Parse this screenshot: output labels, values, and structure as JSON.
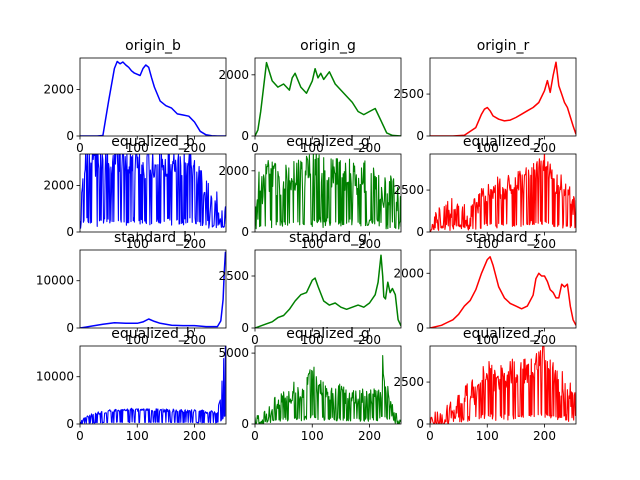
{
  "chart_data": [
    {
      "type": "line",
      "title": "origin_b",
      "color": "#0000ff",
      "xlim": [
        0,
        255
      ],
      "ylim": [
        0,
        3350
      ],
      "xticks": [
        0,
        100,
        200
      ],
      "yticks": [
        0,
        2000
      ],
      "x": [
        0,
        10,
        20,
        30,
        40,
        50,
        60,
        65,
        70,
        75,
        80,
        85,
        90,
        95,
        100,
        105,
        110,
        115,
        120,
        125,
        130,
        135,
        140,
        150,
        160,
        170,
        180,
        190,
        200,
        210,
        220,
        230,
        240,
        255
      ],
      "y": [
        0,
        0,
        0,
        0,
        20,
        1500,
        2900,
        3200,
        3100,
        3180,
        3050,
        2950,
        2800,
        2700,
        2650,
        2600,
        2900,
        3050,
        2950,
        2500,
        2100,
        1800,
        1500,
        1300,
        1200,
        950,
        900,
        850,
        600,
        200,
        50,
        10,
        0,
        0
      ]
    },
    {
      "type": "line",
      "title": "origin_g",
      "color": "#008000",
      "xlim": [
        0,
        255
      ],
      "ylim": [
        0,
        2550
      ],
      "xticks": [
        0,
        100,
        200
      ],
      "yticks": [
        0,
        2000
      ],
      "x": [
        0,
        5,
        10,
        15,
        20,
        30,
        40,
        50,
        60,
        65,
        70,
        80,
        90,
        100,
        105,
        110,
        115,
        120,
        130,
        140,
        150,
        160,
        170,
        180,
        190,
        200,
        210,
        220,
        230,
        240,
        255
      ],
      "y": [
        0,
        200,
        800,
        1600,
        2400,
        1800,
        1600,
        1700,
        1500,
        1900,
        2050,
        1600,
        1400,
        1800,
        2200,
        1900,
        2050,
        1850,
        2100,
        1700,
        1500,
        1300,
        1100,
        800,
        700,
        800,
        900,
        500,
        100,
        20,
        0
      ]
    },
    {
      "type": "line",
      "title": "origin_r",
      "color": "#ff0000",
      "xlim": [
        0,
        255
      ],
      "ylim": [
        0,
        4650
      ],
      "xticks": [
        100,
        200
      ],
      "yticks": [
        0,
        2500
      ],
      "x": [
        0,
        20,
        40,
        60,
        80,
        90,
        95,
        100,
        105,
        110,
        120,
        130,
        140,
        150,
        160,
        170,
        180,
        190,
        200,
        205,
        210,
        215,
        220,
        225,
        230,
        235,
        240,
        250,
        255
      ],
      "y": [
        0,
        0,
        0,
        50,
        500,
        1300,
        1600,
        1700,
        1500,
        1200,
        1000,
        900,
        950,
        1100,
        1300,
        1500,
        1700,
        2000,
        2700,
        3300,
        2600,
        3600,
        4400,
        3000,
        2500,
        2000,
        1700,
        600,
        100
      ]
    },
    {
      "type": "line",
      "title": "equalized_b",
      "color": "#0000ff",
      "xlim": [
        0,
        255
      ],
      "ylim": [
        0,
        3350
      ],
      "xticks": [
        100,
        200
      ],
      "yticks": [
        0,
        2000
      ],
      "x": [
        0,
        5,
        10,
        20,
        30,
        40,
        50,
        60,
        70,
        80,
        90,
        100,
        110,
        120,
        130,
        140,
        150,
        160,
        170,
        180,
        190,
        200,
        210,
        220,
        230,
        240,
        250,
        255
      ],
      "y": [
        0,
        2600,
        2900,
        3000,
        3050,
        3100,
        3050,
        3150,
        3150,
        3050,
        3000,
        3000,
        2950,
        2850,
        2950,
        2950,
        3050,
        2950,
        3000,
        2950,
        3050,
        2800,
        2100,
        1600,
        1300,
        1000,
        850,
        800
      ]
    },
    {
      "type": "line",
      "title": "equalized_g",
      "color": "#008000",
      "xlim": [
        0,
        255
      ],
      "ylim": [
        0,
        2550
      ],
      "xticks": [
        100,
        200
      ],
      "yticks": [
        0,
        2000
      ],
      "x": [
        0,
        5,
        10,
        20,
        30,
        40,
        50,
        60,
        70,
        80,
        90,
        100,
        110,
        120,
        130,
        140,
        150,
        160,
        170,
        180,
        190,
        200,
        210,
        220,
        230,
        240,
        250,
        255
      ],
      "y": [
        0,
        1600,
        1300,
        1800,
        1900,
        1700,
        1600,
        1700,
        1900,
        1800,
        2000,
        2050,
        2100,
        1900,
        2050,
        1950,
        1800,
        1950,
        1900,
        1700,
        1800,
        2000,
        1600,
        1500,
        1200,
        1400,
        1000,
        900
      ]
    },
    {
      "type": "line",
      "title": "equalized_r",
      "color": "#ff0000",
      "xlim": [
        0,
        255
      ],
      "ylim": [
        0,
        4650
      ],
      "xticks": [
        100,
        200
      ],
      "yticks": [
        0,
        2500
      ],
      "x": [
        0,
        10,
        20,
        30,
        40,
        50,
        60,
        70,
        80,
        90,
        100,
        110,
        120,
        130,
        140,
        150,
        160,
        170,
        180,
        190,
        200,
        210,
        220,
        230,
        240,
        250,
        255
      ],
      "y": [
        0,
        1000,
        900,
        1100,
        1500,
        1300,
        1300,
        1500,
        1400,
        1900,
        2300,
        2100,
        2700,
        2500,
        2800,
        3000,
        2900,
        3300,
        3400,
        3900,
        4300,
        3500,
        2900,
        2700,
        2500,
        1600,
        1200
      ]
    },
    {
      "type": "line",
      "title": "standard_b",
      "color": "#0000ff",
      "xlim": [
        0,
        255
      ],
      "ylim": [
        0,
        16500
      ],
      "xticks": [
        100,
        200
      ],
      "yticks": [
        0,
        10000
      ],
      "x": [
        0,
        10,
        20,
        40,
        60,
        80,
        100,
        110,
        120,
        130,
        140,
        160,
        180,
        200,
        220,
        240,
        246,
        250,
        252,
        254,
        255
      ],
      "y": [
        0,
        200,
        400,
        800,
        1100,
        1000,
        1000,
        1300,
        1900,
        1400,
        1000,
        600,
        500,
        500,
        300,
        300,
        1500,
        6000,
        12000,
        16000,
        15000
      ]
    },
    {
      "type": "line",
      "title": "standard_g",
      "color": "#008000",
      "xlim": [
        0,
        255
      ],
      "ylim": [
        0,
        3750
      ],
      "xticks": [
        0,
        100,
        200
      ],
      "yticks": [
        0,
        2500
      ],
      "x": [
        0,
        20,
        30,
        40,
        50,
        60,
        70,
        80,
        90,
        100,
        105,
        110,
        120,
        130,
        140,
        150,
        160,
        170,
        180,
        190,
        200,
        210,
        215,
        220,
        223,
        225,
        228,
        232,
        236,
        240,
        245,
        250,
        255
      ],
      "y": [
        0,
        200,
        300,
        500,
        600,
        900,
        1300,
        1600,
        1700,
        2300,
        2400,
        2000,
        1300,
        1100,
        1200,
        1000,
        900,
        1000,
        1100,
        1000,
        1200,
        1600,
        2200,
        3500,
        2500,
        1500,
        1400,
        2200,
        1700,
        1900,
        1600,
        400,
        100
      ]
    },
    {
      "type": "line",
      "title": "standard_r",
      "color": "#ff0000",
      "xlim": [
        0,
        255
      ],
      "ylim": [
        0,
        2850
      ],
      "xticks": [
        100,
        200
      ],
      "yticks": [
        0,
        2000
      ],
      "x": [
        0,
        20,
        30,
        40,
        50,
        60,
        70,
        80,
        90,
        100,
        105,
        110,
        120,
        130,
        140,
        150,
        160,
        170,
        180,
        185,
        190,
        195,
        200,
        205,
        210,
        215,
        220,
        225,
        230,
        235,
        240,
        245,
        250,
        255
      ],
      "y": [
        0,
        100,
        200,
        300,
        500,
        800,
        1000,
        1400,
        2000,
        2500,
        2600,
        2300,
        1500,
        1100,
        900,
        800,
        700,
        800,
        1200,
        1800,
        2000,
        1900,
        1900,
        1700,
        1400,
        1300,
        1100,
        1100,
        1600,
        1500,
        1600,
        800,
        300,
        100
      ]
    },
    {
      "type": "line",
      "title": "equalized_b",
      "color": "#0000ff",
      "xlim": [
        0,
        255
      ],
      "ylim": [
        0,
        16500
      ],
      "xticks": [
        0,
        100,
        200
      ],
      "yticks": [
        0,
        10000
      ],
      "x": [
        0,
        5,
        10,
        20,
        40,
        60,
        80,
        100,
        120,
        140,
        160,
        180,
        200,
        220,
        240,
        246,
        250,
        252,
        254,
        255
      ],
      "y": [
        0,
        800,
        1200,
        1800,
        2500,
        2900,
        3100,
        3000,
        3000,
        2900,
        2800,
        2800,
        2700,
        2600,
        2500,
        6000,
        12000,
        16000,
        16500,
        15000
      ]
    },
    {
      "type": "line",
      "title": "equalized_g",
      "color": "#008000",
      "xlim": [
        0,
        255
      ],
      "ylim": [
        0,
        5500
      ],
      "xticks": [
        0,
        100,
        200
      ],
      "yticks": [
        0,
        5000
      ],
      "x": [
        0,
        10,
        20,
        30,
        40,
        50,
        60,
        70,
        80,
        90,
        100,
        110,
        120,
        130,
        140,
        150,
        160,
        170,
        180,
        190,
        200,
        210,
        220,
        223,
        225,
        230,
        240,
        250,
        255
      ],
      "y": [
        0,
        300,
        500,
        1000,
        1600,
        2200,
        1800,
        2600,
        1900,
        2700,
        3800,
        2500,
        2600,
        2200,
        2000,
        2300,
        1900,
        2100,
        1900,
        1900,
        1900,
        2000,
        2200,
        5200,
        2900,
        2500,
        1000,
        300,
        100
      ]
    },
    {
      "type": "line",
      "title": "equalized_r",
      "color": "#ff0000",
      "xlim": [
        0,
        255
      ],
      "ylim": [
        0,
        4650
      ],
      "xticks": [
        0,
        100,
        200
      ],
      "yticks": [
        0,
        2500
      ],
      "x": [
        0,
        20,
        30,
        40,
        50,
        60,
        70,
        80,
        90,
        100,
        110,
        120,
        130,
        140,
        150,
        160,
        170,
        180,
        190,
        200,
        210,
        220,
        230,
        240,
        250,
        255
      ],
      "y": [
        0,
        200,
        600,
        1000,
        1200,
        1600,
        2100,
        1900,
        2500,
        3300,
        2600,
        2700,
        2900,
        3000,
        3300,
        3100,
        3200,
        3400,
        3800,
        4100,
        3300,
        2900,
        2400,
        2000,
        1400,
        900
      ]
    }
  ],
  "noise_amp": [
    0,
    0,
    0,
    1400,
    1100,
    1400,
    0,
    0,
    0,
    700,
    1200,
    1600
  ]
}
